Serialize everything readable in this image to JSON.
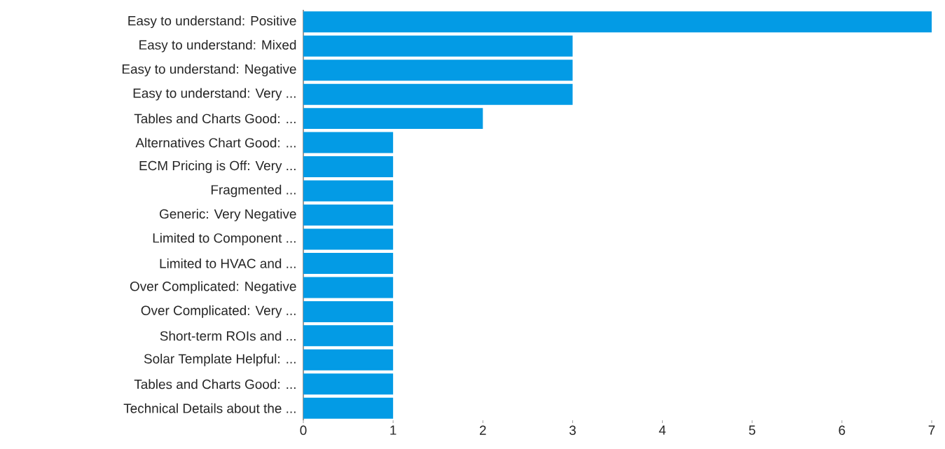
{
  "chart_data": {
    "type": "bar",
    "orientation": "horizontal",
    "categories": [
      "Easy to understand: Positive",
      "Easy to understand: Mixed",
      "Easy to understand: Negative",
      "Easy to understand: Very ...",
      "Tables and Charts Good: ...",
      "Alternatives Chart Good: ...",
      "ECM Pricing is Off: Very ...",
      "Fragmented ...",
      "Generic: Very Negative",
      "Limited to Component ...",
      "Limited to HVAC and ...",
      "Over Complicated: Negative",
      "Over Complicated: Very ...",
      "Short-term ROIs and ...",
      "Solar Template Helpful: ...",
      "Tables and Charts Good: ...",
      "Technical Details about the ..."
    ],
    "values": [
      7,
      3,
      3,
      3,
      2,
      1,
      1,
      1,
      1,
      1,
      1,
      1,
      1,
      1,
      1,
      1,
      1
    ],
    "color": "#039be5",
    "xlim": [
      0,
      7
    ],
    "xticks": [
      0,
      1,
      2,
      3,
      4,
      5,
      6,
      7
    ]
  }
}
